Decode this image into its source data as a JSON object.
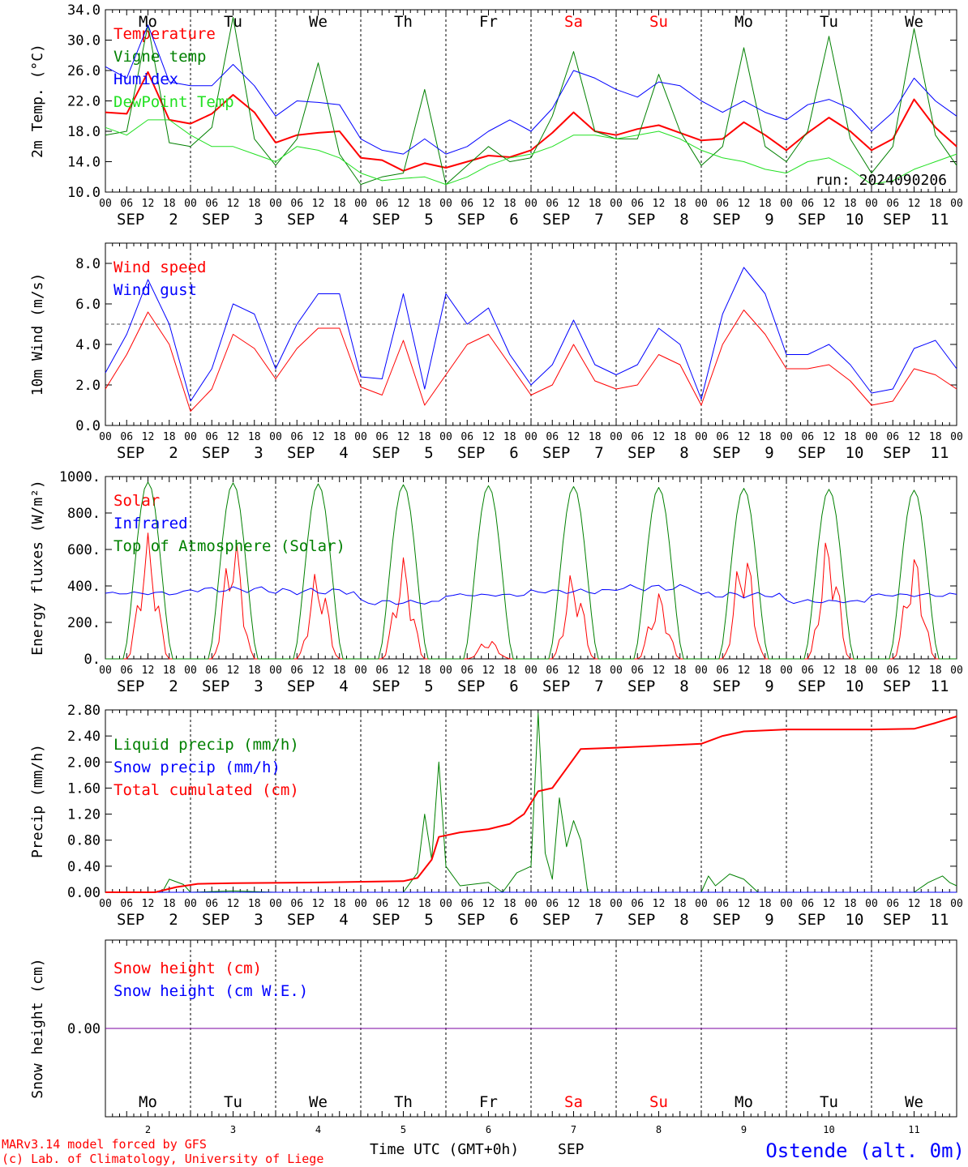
{
  "footer": {
    "model": "MARv3.14 model forced by GFS",
    "credit": "(c) Lab. of Climatology, University of Liege",
    "xlabel": "Time UTC (GMT+0h)",
    "month": "SEP",
    "station": "Ostende (alt. 0m)",
    "run": "run: 2024090206"
  },
  "colors": {
    "red": "#ff0000",
    "green": "#008000",
    "blue": "#0000ff",
    "lightgreen": "#22e022",
    "purple": "#7a00a0",
    "dayred": "#ff0000"
  },
  "days": [
    {
      "abbr": "Mo",
      "num": "2",
      "weekend": false
    },
    {
      "abbr": "Tu",
      "num": "3",
      "weekend": false
    },
    {
      "abbr": "We",
      "num": "4",
      "weekend": false
    },
    {
      "abbr": "Th",
      "num": "5",
      "weekend": false
    },
    {
      "abbr": "Fr",
      "num": "6",
      "weekend": false
    },
    {
      "abbr": "Sa",
      "num": "7",
      "weekend": true
    },
    {
      "abbr": "Su",
      "num": "8",
      "weekend": true
    },
    {
      "abbr": "Mo",
      "num": "9",
      "weekend": false
    },
    {
      "abbr": "Tu",
      "num": "10",
      "weekend": false
    },
    {
      "abbr": "We",
      "num": "11",
      "weekend": false
    }
  ],
  "hour_ticks": [
    "00",
    "06",
    "12",
    "18"
  ],
  "end_tick": "00",
  "chart_data": [
    {
      "type": "line",
      "ylabel": "2m Temp. (°C)",
      "ylim": [
        10,
        34
      ],
      "yticks": [
        "10.0",
        "14.0",
        "18.0",
        "22.0",
        "26.0",
        "30.0",
        "34.0"
      ],
      "ytick_values": [
        10,
        14,
        18,
        22,
        26,
        30,
        34
      ],
      "show_day_names": true,
      "x_hours": [
        0,
        6,
        12,
        18,
        24,
        30,
        36,
        42,
        48,
        54,
        60,
        66,
        72,
        78,
        84,
        90,
        96,
        102,
        108,
        114,
        120,
        126,
        132,
        138,
        144,
        150,
        156,
        162,
        168,
        174,
        180,
        186,
        192,
        198,
        204,
        210,
        216,
        222,
        228,
        234,
        240
      ],
      "series": [
        {
          "name": "Temperature",
          "color": "#ff0000",
          "width": 2,
          "values": [
            20.5,
            20.3,
            25.8,
            19.5,
            19.0,
            20.3,
            22.8,
            20.5,
            16.5,
            17.5,
            17.8,
            18.0,
            14.5,
            14.2,
            12.8,
            13.8,
            13.2,
            14.0,
            14.8,
            14.6,
            15.5,
            17.8,
            20.5,
            18.0,
            17.5,
            18.3,
            18.8,
            17.8,
            16.8,
            17.0,
            19.2,
            17.5,
            15.5,
            17.8,
            19.8,
            18.0,
            15.5,
            17.0,
            22.2,
            18.5,
            16.0
          ]
        },
        {
          "name": "Vigne temp",
          "color": "#008000",
          "width": 1,
          "values": [
            17.5,
            18.0,
            32.0,
            16.5,
            16.0,
            18.5,
            33.0,
            17.0,
            13.5,
            17.0,
            27.0,
            15.0,
            11.0,
            12.0,
            12.5,
            23.5,
            11.0,
            13.5,
            16.0,
            14.0,
            14.5,
            20.0,
            28.5,
            18.0,
            17.0,
            17.0,
            25.5,
            18.0,
            13.5,
            16.0,
            29.0,
            16.0,
            14.0,
            18.0,
            30.5,
            17.0,
            12.5,
            16.0,
            31.5,
            17.5,
            13.5
          ]
        },
        {
          "name": "Humidex",
          "color": "#0000ff",
          "width": 1,
          "values": [
            26.5,
            25.0,
            32.0,
            24.5,
            24.0,
            24.0,
            26.8,
            24.0,
            20.0,
            22.0,
            21.8,
            21.5,
            17.0,
            15.5,
            15.0,
            17.0,
            15.0,
            16.0,
            18.0,
            19.5,
            18.0,
            21.0,
            26.0,
            25.0,
            23.5,
            22.5,
            24.5,
            24.0,
            22.0,
            20.5,
            22.0,
            20.5,
            19.5,
            21.5,
            22.2,
            21.0,
            18.0,
            20.5,
            25.0,
            22.0,
            20.0
          ]
        },
        {
          "name": "DewPoint Temp",
          "color": "#22e022",
          "width": 1,
          "values": [
            18.5,
            17.5,
            19.5,
            19.5,
            17.5,
            16.0,
            16.0,
            15.0,
            14.0,
            16.0,
            15.5,
            14.5,
            12.5,
            11.5,
            11.8,
            12.0,
            11.0,
            12.0,
            13.5,
            14.5,
            15.0,
            16.0,
            17.5,
            17.5,
            17.0,
            17.5,
            18.0,
            17.0,
            15.5,
            14.5,
            14.0,
            13.0,
            12.5,
            14.0,
            14.5,
            13.0,
            11.0,
            11.5,
            13.0,
            14.0,
            15.0
          ]
        }
      ]
    },
    {
      "type": "line",
      "ylabel": "10m Wind (m/s)",
      "ylim": [
        0,
        9
      ],
      "yticks": [
        "0.0",
        "2.0",
        "4.0",
        "6.0",
        "8.0"
      ],
      "ytick_values": [
        0,
        2,
        4,
        6,
        8
      ],
      "ref_line": 5,
      "show_day_names": false,
      "x_hours": [
        0,
        6,
        12,
        18,
        24,
        30,
        36,
        42,
        48,
        54,
        60,
        66,
        72,
        78,
        84,
        90,
        96,
        102,
        108,
        114,
        120,
        126,
        132,
        138,
        144,
        150,
        156,
        162,
        168,
        174,
        180,
        186,
        192,
        198,
        204,
        210,
        216,
        222,
        228,
        234,
        240
      ],
      "series": [
        {
          "name": "Wind speed",
          "color": "#ff0000",
          "width": 1,
          "values": [
            1.8,
            3.5,
            5.6,
            4.0,
            0.7,
            1.8,
            4.5,
            3.8,
            2.3,
            3.8,
            4.8,
            4.8,
            1.9,
            1.5,
            4.2,
            1.0,
            2.5,
            4.0,
            4.5,
            3.0,
            1.5,
            2.0,
            4.0,
            2.2,
            1.8,
            2.0,
            3.5,
            3.0,
            1.0,
            4.0,
            5.7,
            4.5,
            2.8,
            2.8,
            3.0,
            2.2,
            1.0,
            1.2,
            2.8,
            2.5,
            1.8
          ]
        },
        {
          "name": "Wind gust",
          "color": "#0000ff",
          "width": 1,
          "values": [
            2.6,
            4.5,
            7.2,
            5.0,
            1.2,
            2.8,
            6.0,
            5.5,
            2.8,
            5.0,
            6.5,
            6.5,
            2.4,
            2.3,
            6.5,
            1.8,
            6.5,
            5.0,
            5.8,
            3.5,
            2.0,
            3.0,
            5.2,
            3.0,
            2.5,
            3.0,
            4.8,
            4.0,
            1.3,
            5.5,
            7.8,
            6.5,
            3.5,
            3.5,
            4.0,
            3.0,
            1.6,
            1.8,
            3.8,
            4.2,
            2.8
          ]
        }
      ]
    },
    {
      "type": "line",
      "ylabel": "Energy fluxes (W/m²)",
      "ylim": [
        0,
        1000
      ],
      "yticks": [
        "0.",
        "200.",
        "400.",
        "600.",
        "800.",
        "1000."
      ],
      "ytick_values": [
        0,
        200,
        400,
        600,
        800,
        1000
      ],
      "show_day_names": false,
      "solar_day_cycle": true,
      "series": [
        {
          "name": "Solar",
          "color": "#ff0000",
          "width": 1,
          "daily_peaks": [
            690,
            700,
            500,
            560,
            110,
            490,
            370,
            640,
            690,
            590
          ]
        },
        {
          "name": "Infrared",
          "color": "#0000ff",
          "width": 1,
          "daily_mean": [
            360,
            380,
            370,
            310,
            350,
            370,
            390,
            350,
            315,
            350
          ]
        },
        {
          "name": "Top of Atmosphere (Solar)",
          "color": "#008000",
          "width": 1,
          "daily_peaks": [
            970,
            965,
            960,
            955,
            950,
            945,
            940,
            935,
            930,
            925
          ]
        }
      ]
    },
    {
      "type": "line",
      "ylabel": "Precip (mm/h)",
      "ylim": [
        0,
        2.8
      ],
      "yticks": [
        "0.00",
        "0.40",
        "0.80",
        "1.20",
        "1.60",
        "2.00",
        "2.40",
        "2.80"
      ],
      "ytick_values": [
        0,
        0.4,
        0.8,
        1.2,
        1.6,
        2.0,
        2.4,
        2.8
      ],
      "show_day_names": false,
      "series": [
        {
          "name": "Liquid precip (mm/h)",
          "color": "#008000",
          "width": 1,
          "points": [
            [
              0,
              0
            ],
            [
              16,
              0
            ],
            [
              18,
              0.2
            ],
            [
              22,
              0.12
            ],
            [
              24,
              0
            ],
            [
              36,
              0.02
            ],
            [
              48,
              0
            ],
            [
              84,
              0
            ],
            [
              88,
              0.3
            ],
            [
              90,
              1.2
            ],
            [
              92,
              0.5
            ],
            [
              94,
              2.0
            ],
            [
              96,
              0.4
            ],
            [
              100,
              0.1
            ],
            [
              108,
              0.15
            ],
            [
              112,
              0
            ],
            [
              116,
              0.3
            ],
            [
              120,
              0.4
            ],
            [
              122,
              2.75
            ],
            [
              124,
              0.6
            ],
            [
              126,
              0.2
            ],
            [
              128,
              1.45
            ],
            [
              130,
              0.7
            ],
            [
              132,
              1.1
            ],
            [
              134,
              0.8
            ],
            [
              136,
              0
            ],
            [
              168,
              0
            ],
            [
              170,
              0.25
            ],
            [
              172,
              0.1
            ],
            [
              176,
              0.28
            ],
            [
              180,
              0.2
            ],
            [
              184,
              0
            ],
            [
              228,
              0
            ],
            [
              232,
              0.15
            ],
            [
              236,
              0.25
            ],
            [
              238,
              0.15
            ],
            [
              240,
              0.1
            ]
          ]
        },
        {
          "name": "Snow precip (mm/h)",
          "color": "#0000ff",
          "width": 1,
          "points": [
            [
              0,
              0
            ],
            [
              240,
              0
            ]
          ]
        },
        {
          "name": "Total cumulated (cm)",
          "color": "#ff0000",
          "width": 2,
          "points": [
            [
              0,
              0
            ],
            [
              14,
              0
            ],
            [
              20,
              0.08
            ],
            [
              26,
              0.13
            ],
            [
              36,
              0.14
            ],
            [
              60,
              0.15
            ],
            [
              84,
              0.17
            ],
            [
              88,
              0.22
            ],
            [
              92,
              0.5
            ],
            [
              94,
              0.85
            ],
            [
              100,
              0.92
            ],
            [
              108,
              0.97
            ],
            [
              114,
              1.05
            ],
            [
              118,
              1.2
            ],
            [
              122,
              1.55
            ],
            [
              126,
              1.6
            ],
            [
              130,
              1.9
            ],
            [
              134,
              2.2
            ],
            [
              144,
              2.22
            ],
            [
              156,
              2.25
            ],
            [
              168,
              2.28
            ],
            [
              174,
              2.4
            ],
            [
              180,
              2.47
            ],
            [
              192,
              2.5
            ],
            [
              204,
              2.5
            ],
            [
              216,
              2.5
            ],
            [
              228,
              2.51
            ],
            [
              234,
              2.6
            ],
            [
              240,
              2.7
            ]
          ]
        }
      ]
    },
    {
      "type": "line",
      "ylabel": "Snow height (cm)",
      "ylim": [
        -1,
        1
      ],
      "yticks": [
        "0.00"
      ],
      "ytick_values": [
        0
      ],
      "show_day_names": false,
      "bottom_panel": true,
      "series": [
        {
          "name": "Snow height (cm)",
          "color": "#ff0000",
          "width": 1,
          "points": [
            [
              0,
              0
            ],
            [
              240,
              0
            ]
          ]
        },
        {
          "name": "Snow height (cm W.E.)",
          "color": "#0000ff",
          "width": 1,
          "points": [
            [
              0,
              0
            ],
            [
              240,
              0
            ]
          ]
        }
      ]
    }
  ]
}
